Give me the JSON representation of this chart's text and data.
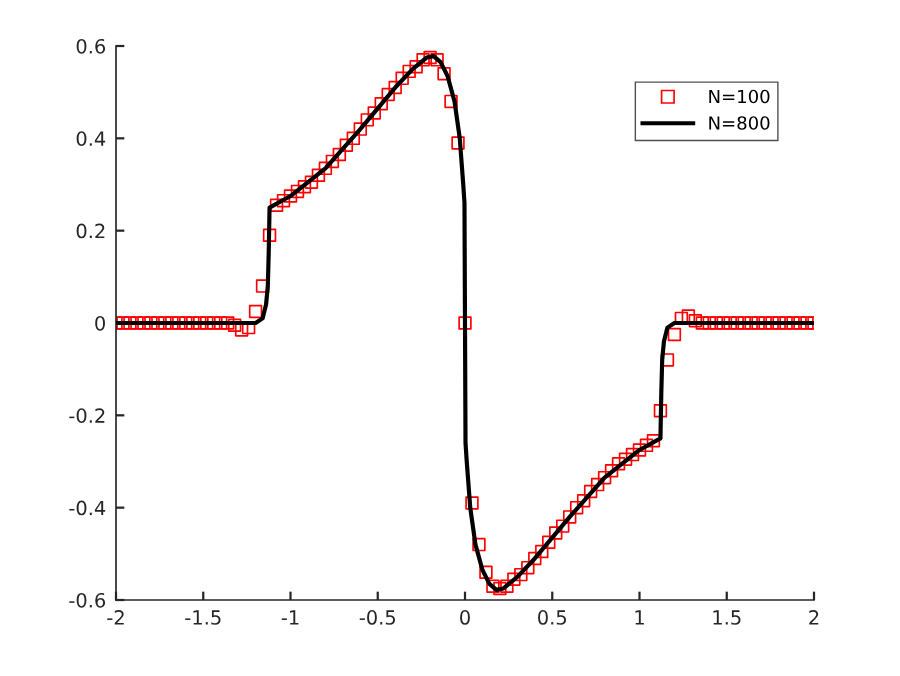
{
  "chart_data": {
    "type": "scatter",
    "xlim": [
      -2,
      2
    ],
    "ylim": [
      -0.6,
      0.6
    ],
    "xticks": [
      -2,
      -1.5,
      -1,
      -0.5,
      0,
      0.5,
      1,
      1.5,
      2
    ],
    "yticks": [
      -0.6,
      -0.4,
      -0.2,
      0,
      0.2,
      0.4,
      0.6
    ],
    "grid": false,
    "legend": "top right",
    "series": [
      {
        "name": "N=100",
        "marker": "square",
        "color": "#ff0000",
        "x": [
          -2,
          -1.96,
          -1.92,
          -1.88,
          -1.84,
          -1.8,
          -1.76,
          -1.72,
          -1.68,
          -1.64,
          -1.6,
          -1.56,
          -1.52,
          -1.48,
          -1.44,
          -1.4,
          -1.36,
          -1.32,
          -1.28,
          -1.24,
          -1.2,
          -1.16,
          -1.12,
          -1.08,
          -1.04,
          -1,
          -0.96,
          -0.92,
          -0.88,
          -0.84,
          -0.8,
          -0.76,
          -0.72,
          -0.68,
          -0.64,
          -0.6,
          -0.56,
          -0.52,
          -0.48,
          -0.44,
          -0.4,
          -0.36,
          -0.32,
          -0.28,
          -0.24,
          -0.2,
          -0.16,
          -0.12,
          -0.08,
          -0.04,
          0,
          0.04,
          0.08,
          0.12,
          0.16,
          0.2,
          0.24,
          0.28,
          0.32,
          0.36,
          0.4,
          0.44,
          0.48,
          0.52,
          0.56,
          0.6,
          0.64,
          0.68,
          0.72,
          0.76,
          0.8,
          0.84,
          0.88,
          0.92,
          0.96,
          1,
          1.04,
          1.08,
          1.12,
          1.16,
          1.2,
          1.24,
          1.28,
          1.32,
          1.36,
          1.4,
          1.44,
          1.48,
          1.52,
          1.56,
          1.6,
          1.64,
          1.68,
          1.72,
          1.76,
          1.8,
          1.84,
          1.88,
          1.92,
          1.96,
          2
        ],
        "values": [
          0,
          0,
          0,
          0,
          0,
          0,
          0,
          0,
          0,
          0,
          0,
          0,
          0,
          0,
          0,
          0,
          0,
          -0.005,
          -0.015,
          -0.01,
          0.025,
          0.08,
          0.19,
          0.255,
          0.265,
          0.275,
          0.285,
          0.295,
          0.305,
          0.32,
          0.335,
          0.35,
          0.365,
          0.385,
          0.4,
          0.42,
          0.44,
          0.455,
          0.475,
          0.495,
          0.51,
          0.53,
          0.545,
          0.555,
          0.57,
          0.575,
          0.57,
          0.54,
          0.48,
          0.39,
          0,
          -0.39,
          -0.48,
          -0.54,
          -0.57,
          -0.575,
          -0.57,
          -0.555,
          -0.545,
          -0.53,
          -0.51,
          -0.495,
          -0.475,
          -0.455,
          -0.44,
          -0.42,
          -0.4,
          -0.385,
          -0.365,
          -0.35,
          -0.335,
          -0.32,
          -0.305,
          -0.295,
          -0.285,
          -0.275,
          -0.265,
          -0.255,
          -0.19,
          -0.08,
          -0.025,
          0.01,
          0.015,
          0.005,
          0,
          0,
          0,
          0,
          0,
          0,
          0,
          0,
          0,
          0,
          0,
          0,
          0,
          0,
          0,
          0,
          0
        ]
      },
      {
        "name": "N=800",
        "type": "line",
        "marker": "none",
        "line_style": "solid",
        "color": "#000000",
        "x": [
          -2,
          -1.2,
          -1.16,
          -1.14,
          -1.13,
          -1.125,
          -1.12,
          -1,
          -0.8,
          -0.6,
          -0.4,
          -0.3,
          -0.22,
          -0.18,
          -0.14,
          -0.1,
          -0.06,
          -0.03,
          -0.01,
          -0.003,
          0.003,
          0.01,
          0.03,
          0.06,
          0.1,
          0.14,
          0.18,
          0.22,
          0.3,
          0.4,
          0.6,
          0.8,
          1,
          1.12,
          1.125,
          1.13,
          1.14,
          1.16,
          1.2,
          2
        ],
        "values": [
          0,
          0,
          0.01,
          0.04,
          0.08,
          0.15,
          0.25,
          0.275,
          0.335,
          0.42,
          0.51,
          0.55,
          0.575,
          0.578,
          0.565,
          0.535,
          0.48,
          0.4,
          0.3,
          0.26,
          -0.26,
          -0.3,
          -0.4,
          -0.48,
          -0.535,
          -0.565,
          -0.578,
          -0.575,
          -0.55,
          -0.51,
          -0.42,
          -0.335,
          -0.275,
          -0.25,
          -0.15,
          -0.08,
          -0.04,
          -0.01,
          0,
          0
        ]
      }
    ]
  }
}
